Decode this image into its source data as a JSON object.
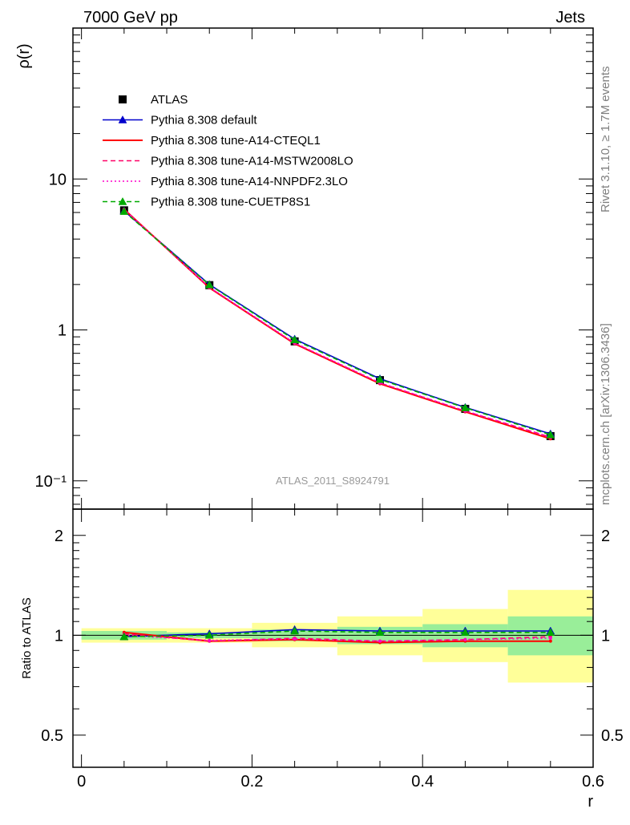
{
  "header": {
    "left": "7000 GeV pp",
    "right": "Jets"
  },
  "side_labels": {
    "top": "Rivet 3.1.10, ≥ 1.7M events",
    "bottom": "mcplots.cern.ch [arXiv:1306.3436]"
  },
  "watermark": "ATLAS_2011_S8924791",
  "chart_data": [
    {
      "type": "line",
      "panel": "main",
      "ylabel": "ρ(r)",
      "yscale": "log",
      "ylim": [
        0.065,
        100
      ],
      "xlim": [
        -0.01,
        0.6
      ],
      "ytick_labels": [
        "10",
        "1",
        "10⁻¹"
      ],
      "ytick_values": [
        10,
        1,
        0.1
      ],
      "legend_position": "top-left",
      "x": [
        0.05,
        0.15,
        0.25,
        0.35,
        0.45,
        0.55
      ],
      "series": [
        {
          "name": "ATLAS",
          "values": [
            6.2,
            1.98,
            0.84,
            0.465,
            0.3,
            0.198
          ],
          "style": "data",
          "color": "#000000"
        },
        {
          "name": "Pythia 8.308 default",
          "values": [
            6.15,
            2.0,
            0.87,
            0.475,
            0.307,
            0.205
          ],
          "style": "solid-triangle",
          "color": "#0000cc"
        },
        {
          "name": "Pythia 8.308 tune-A14-CTEQL1",
          "values": [
            6.3,
            1.9,
            0.81,
            0.44,
            0.287,
            0.19
          ],
          "style": "solid",
          "color": "#ff0000"
        },
        {
          "name": "Pythia 8.308 tune-A14-MSTW2008LO",
          "values": [
            6.28,
            1.91,
            0.815,
            0.445,
            0.29,
            0.195
          ],
          "style": "dashed",
          "color": "#ff0066"
        },
        {
          "name": "Pythia 8.308 tune-A14-NNPDF2.3LO",
          "values": [
            6.26,
            1.92,
            0.82,
            0.447,
            0.291,
            0.194
          ],
          "style": "dotted",
          "color": "#ff00cc"
        },
        {
          "name": "Pythia 8.308 tune-CUETP8S1",
          "values": [
            6.1,
            1.99,
            0.86,
            0.47,
            0.305,
            0.202
          ],
          "style": "dashed-triangle",
          "color": "#00aa00"
        }
      ]
    },
    {
      "type": "line",
      "panel": "ratio",
      "ylabel": "Ratio to ATLAS",
      "xlabel": "r",
      "ylim": [
        0.4,
        2.4
      ],
      "xlim": [
        -0.01,
        0.6
      ],
      "xtick_labels": [
        "0",
        "0.2",
        "0.4",
        "0.6"
      ],
      "xtick_values": [
        0,
        0.2,
        0.4,
        0.6
      ],
      "ytick_labels": [
        "2",
        "1",
        "0.5"
      ],
      "ytick_values": [
        2,
        1,
        0.5
      ],
      "bins": [
        [
          0,
          0.1
        ],
        [
          0.1,
          0.2
        ],
        [
          0.2,
          0.3
        ],
        [
          0.3,
          0.4
        ],
        [
          0.4,
          0.5
        ],
        [
          0.5,
          0.6
        ]
      ],
      "band_yellow": [
        [
          0.95,
          1.05
        ],
        [
          0.95,
          1.05
        ],
        [
          0.92,
          1.09
        ],
        [
          0.87,
          1.14
        ],
        [
          0.83,
          1.2
        ],
        [
          0.72,
          1.37
        ]
      ],
      "band_green": [
        [
          0.97,
          1.03
        ],
        [
          0.98,
          1.02
        ],
        [
          0.96,
          1.04
        ],
        [
          0.94,
          1.06
        ],
        [
          0.92,
          1.08
        ],
        [
          0.87,
          1.14
        ]
      ],
      "x": [
        0.05,
        0.15,
        0.25,
        0.35,
        0.45,
        0.55
      ],
      "series": [
        {
          "name": "Pythia 8.308 default",
          "values": [
            0.99,
            1.01,
            1.04,
            1.03,
            1.03,
            1.03
          ],
          "style": "solid-triangle",
          "color": "#0000cc"
        },
        {
          "name": "Pythia 8.308 tune-A14-CTEQL1",
          "values": [
            1.02,
            0.96,
            0.97,
            0.95,
            0.96,
            0.96
          ],
          "style": "solid",
          "color": "#ff0000"
        },
        {
          "name": "Pythia 8.308 tune-A14-MSTW2008LO",
          "values": [
            1.01,
            0.96,
            0.98,
            0.96,
            0.97,
            0.99
          ],
          "style": "dashed",
          "color": "#ff0066"
        },
        {
          "name": "Pythia 8.308 tune-A14-NNPDF2.3LO",
          "values": [
            1.0,
            0.965,
            0.975,
            0.96,
            0.97,
            0.98
          ],
          "style": "dotted",
          "color": "#ff00cc"
        },
        {
          "name": "Pythia 8.308 tune-CUETP8S1",
          "values": [
            0.99,
            1.0,
            1.03,
            1.02,
            1.02,
            1.02
          ],
          "style": "dashed-triangle",
          "color": "#00aa00"
        }
      ]
    }
  ]
}
